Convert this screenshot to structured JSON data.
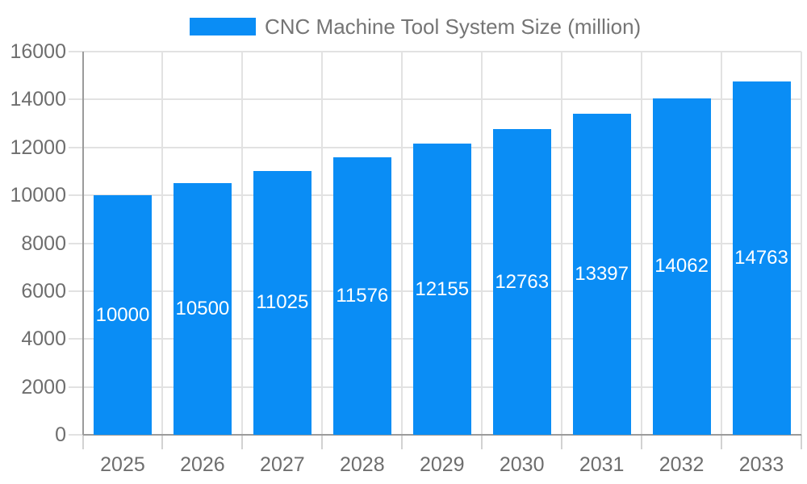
{
  "chart_data": {
    "type": "bar",
    "title": "CNC Machine Tool System Size (million)",
    "categories": [
      "2025",
      "2026",
      "2027",
      "2028",
      "2029",
      "2030",
      "2031",
      "2032",
      "2033"
    ],
    "series": [
      {
        "name": "CNC Machine Tool System Size (million)",
        "values": [
          10000,
          10500,
          11025,
          11576,
          12155,
          12763,
          13397,
          14062,
          14763
        ]
      }
    ],
    "data_labels": [
      "10000",
      "10500",
      "11025",
      "11576",
      "12155",
      "12763",
      "13397",
      "14062",
      "14763"
    ],
    "xlabel": "",
    "ylabel": "",
    "ylim": [
      0,
      16000
    ],
    "ytick_step": 2000,
    "ytick_labels": [
      "0",
      "2000",
      "4000",
      "6000",
      "8000",
      "10000",
      "12000",
      "14000",
      "16000"
    ],
    "grid": true,
    "legend_position": "top",
    "data_labels_position": "inside-center",
    "colors": {
      "bar": "#0a8df5",
      "grid": "#e2e2e2",
      "tick": "#d2d2d2",
      "axis": "#9b9b9b",
      "text": "#6e6e6e",
      "data_label": "#ffffff",
      "background": "#ffffff"
    }
  }
}
